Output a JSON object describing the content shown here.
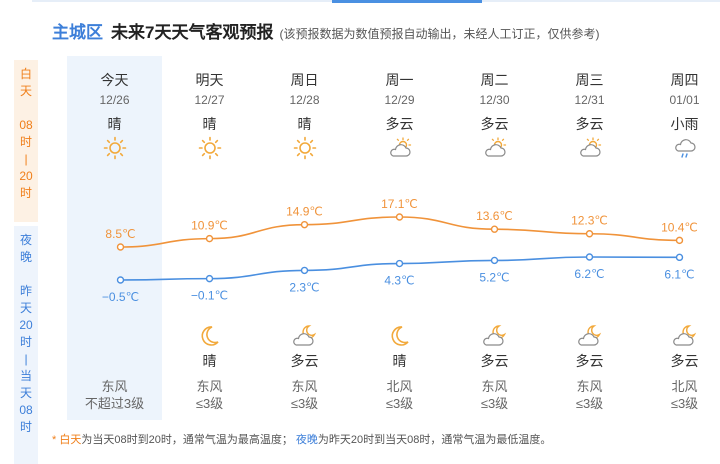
{
  "header": {
    "region": "主城区",
    "title": "未来7天天气客观预报",
    "note": "(该预报数据为数值预报自动输出，未经人工订正，仅供参考)"
  },
  "sidebar": {
    "day_segments": [
      "白",
      "天",
      "",
      "08",
      "时",
      "|",
      "20",
      "时"
    ],
    "night_segments": [
      "夜",
      "晚",
      "",
      "昨",
      "天",
      "20",
      "时",
      "|",
      "当",
      "天",
      "08",
      "时"
    ]
  },
  "days": [
    {
      "name": "今天",
      "date": "12/26",
      "day_weather": "晴",
      "day_icon": "sun-icon",
      "high": 8.5,
      "high_label": "8.5℃",
      "low": -0.5,
      "low_label": "−0.5℃",
      "night_icon": "",
      "night_weather": "",
      "wind_dir": "东风",
      "wind_level": "不超过3级"
    },
    {
      "name": "明天",
      "date": "12/27",
      "day_weather": "晴",
      "day_icon": "sun-icon",
      "high": 10.9,
      "high_label": "10.9℃",
      "low": -0.1,
      "low_label": "−0.1℃",
      "night_icon": "moon-icon",
      "night_weather": "晴",
      "wind_dir": "东风",
      "wind_level": "≤3级"
    },
    {
      "name": "周日",
      "date": "12/28",
      "day_weather": "晴",
      "day_icon": "sun-icon",
      "high": 14.9,
      "high_label": "14.9℃",
      "low": 2.3,
      "low_label": "2.3℃",
      "night_icon": "moon-cloud-icon",
      "night_weather": "多云",
      "wind_dir": "东风",
      "wind_level": "≤3级"
    },
    {
      "name": "周一",
      "date": "12/29",
      "day_weather": "多云",
      "day_icon": "sun-cloud-icon",
      "high": 17.1,
      "high_label": "17.1℃",
      "low": 4.3,
      "low_label": "4.3℃",
      "night_icon": "moon-icon",
      "night_weather": "晴",
      "wind_dir": "北风",
      "wind_level": "≤3级"
    },
    {
      "name": "周二",
      "date": "12/30",
      "day_weather": "多云",
      "day_icon": "sun-cloud-icon",
      "high": 13.6,
      "high_label": "13.6℃",
      "low": 5.2,
      "low_label": "5.2℃",
      "night_icon": "moon-cloud-icon",
      "night_weather": "多云",
      "wind_dir": "东风",
      "wind_level": "≤3级"
    },
    {
      "name": "周三",
      "date": "12/31",
      "day_weather": "多云",
      "day_icon": "sun-cloud-icon",
      "high": 12.3,
      "high_label": "12.3℃",
      "low": 6.2,
      "low_label": "6.2℃",
      "night_icon": "moon-cloud-icon",
      "night_weather": "多云",
      "wind_dir": "东风",
      "wind_level": "≤3级"
    },
    {
      "name": "周四",
      "date": "01/01",
      "day_weather": "小雨",
      "day_icon": "rain-icon",
      "high": 10.4,
      "high_label": "10.4℃",
      "low": 6.1,
      "low_label": "6.1℃",
      "night_icon": "moon-cloud-icon",
      "night_weather": "多云",
      "wind_dir": "北风",
      "wind_level": "≤3级"
    }
  ],
  "footer": {
    "star": "*",
    "day_key": "白天",
    "day_text": "为当天08时到20时，通常气温为最高温度；",
    "night_key": "夜晚",
    "night_text": "为昨天20时到当天08时，通常气温为最低温度。"
  },
  "colors": {
    "region": "#3d7fd9",
    "high_line": "#f0933a",
    "low_line": "#4a8fe0",
    "day_side": "#f07f1a",
    "night_side": "#3d7fd9",
    "today_bg": "#edf4fc"
  },
  "chart_data": {
    "type": "line",
    "categories": [
      "12/26",
      "12/27",
      "12/28",
      "12/29",
      "12/30",
      "12/31",
      "01/01"
    ],
    "series": [
      {
        "values": [
          8.5,
          10.9,
          14.9,
          17.1,
          13.6,
          12.3,
          10.4
        ]
      },
      {
        "values": [
          -0.5,
          -0.1,
          2.3,
          4.3,
          5.2,
          6.2,
          6.1
        ]
      }
    ]
  }
}
